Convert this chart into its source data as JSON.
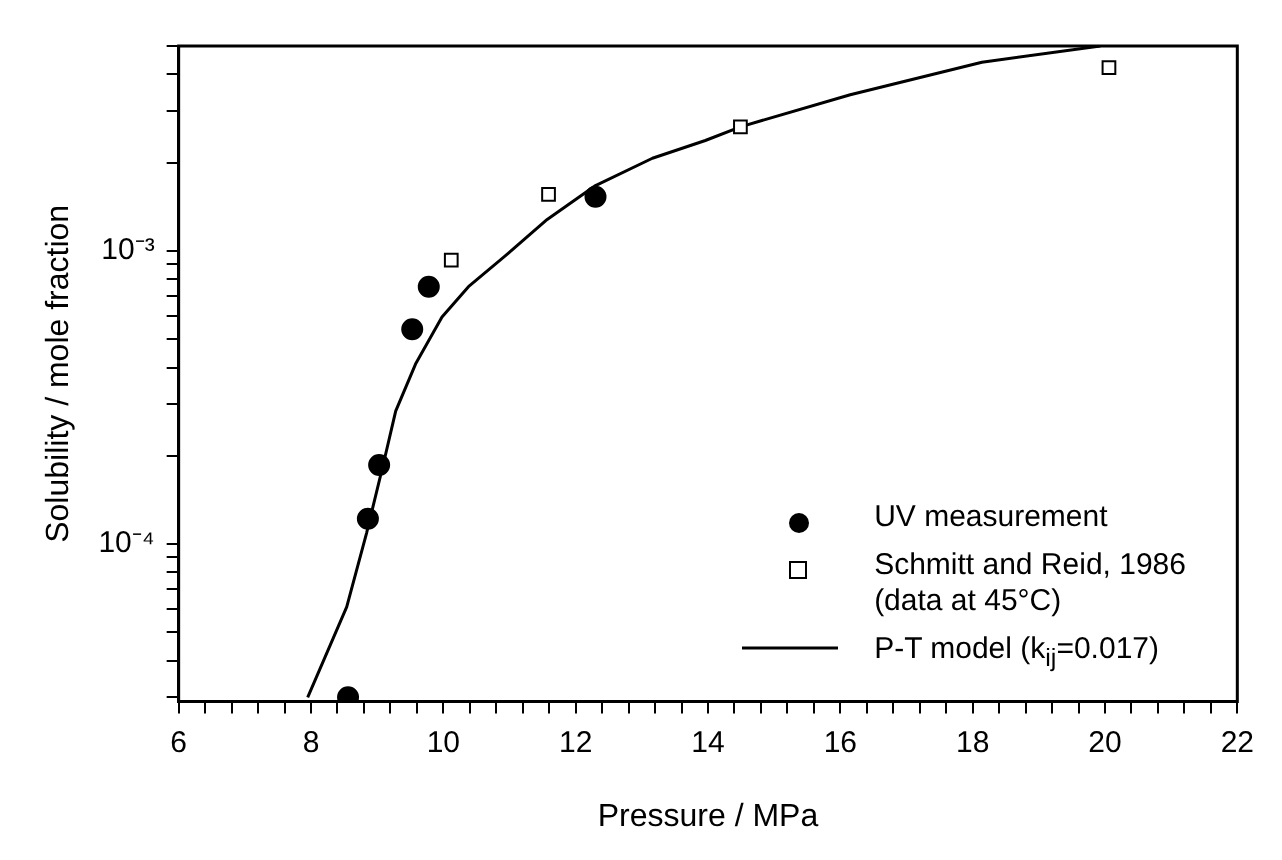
{
  "chart_data": {
    "type": "scatter",
    "xlabel": "Pressure / MPa",
    "ylabel": "Solubility / mole fraction",
    "log": "y",
    "grid": false,
    "legend": "bottom right",
    "xlim": [
      6,
      22
    ],
    "ylim": [
      2.9e-05,
      0.005
    ],
    "xticks": [
      6,
      {
        "value": 6.4,
        "label": null
      },
      {
        "value": 6.8,
        "label": null
      },
      {
        "value": 7.2,
        "label": null
      },
      {
        "value": 7.6,
        "label": null
      },
      8,
      {
        "value": 8.4,
        "label": null
      },
      {
        "value": 8.8,
        "label": null
      },
      {
        "value": 9.2,
        "label": null
      },
      {
        "value": 9.6,
        "label": null
      },
      10,
      {
        "value": 10.4,
        "label": null
      },
      {
        "value": 10.8,
        "label": null
      },
      {
        "value": 11.2,
        "label": null
      },
      {
        "value": 11.6,
        "label": null
      },
      12,
      {
        "value": 12.4,
        "label": null
      },
      {
        "value": 12.8,
        "label": null
      },
      {
        "value": 13.2,
        "label": null
      },
      {
        "value": 13.6,
        "label": null
      },
      14,
      {
        "value": 14.4,
        "label": null
      },
      {
        "value": 14.8,
        "label": null
      },
      {
        "value": 15.2,
        "label": null
      },
      {
        "value": 15.6,
        "label": null
      },
      16,
      {
        "value": 16.4,
        "label": null
      },
      {
        "value": 16.8,
        "label": null
      },
      {
        "value": 17.2,
        "label": null
      },
      {
        "value": 17.6,
        "label": null
      },
      18,
      {
        "value": 18.4,
        "label": null
      },
      {
        "value": 18.8,
        "label": null
      },
      {
        "value": 19.2,
        "label": null
      },
      {
        "value": 19.6,
        "label": null
      },
      20,
      {
        "value": 20.4,
        "label": null
      },
      {
        "value": 20.8,
        "label": null
      },
      {
        "value": 21.2,
        "label": null
      },
      {
        "value": 21.6,
        "label": null
      },
      22
    ],
    "yticks": [
      {
        "value": 3e-05,
        "label": null
      },
      {
        "value": 4e-05,
        "label": null
      },
      {
        "value": 5e-05,
        "label": null
      },
      {
        "value": 6e-05,
        "label": null
      },
      {
        "value": 7e-05,
        "label": null
      },
      {
        "value": 8e-05,
        "label": null
      },
      {
        "value": 9e-05,
        "label": null
      },
      {
        "value": 0.0001,
        "label": "10⁻⁴"
      },
      {
        "value": 0.0002,
        "label": null
      },
      {
        "value": 0.0003,
        "label": null
      },
      {
        "value": 0.0004,
        "label": null
      },
      {
        "value": 0.0005,
        "label": null
      },
      {
        "value": 0.0006,
        "label": null
      },
      {
        "value": 0.0007,
        "label": null
      },
      {
        "value": 0.0008,
        "label": null
      },
      {
        "value": 0.0009,
        "label": null
      },
      {
        "value": 0.001,
        "label": "10⁻³"
      },
      {
        "value": 0.002,
        "label": null
      },
      {
        "value": 0.003,
        "label": null
      },
      {
        "value": 0.004,
        "label": null
      },
      {
        "value": 0.005,
        "label": null
      }
    ],
    "series": [
      {
        "name": "UV measurement",
        "type": "scatter",
        "marker": "circle",
        "color": "#000000",
        "x": [
          8.56,
          8.86,
          9.03,
          9.53,
          9.78,
          12.3
        ],
        "values": [
          3e-05,
          0.000122,
          0.000186,
          0.00054,
          0.000755,
          0.00153
        ]
      },
      {
        "name": "Schmitt and Reid, 1986\n(data at 45°C)",
        "type": "scatter",
        "marker": "square",
        "color": "#000000",
        "x": [
          10.12,
          11.59,
          14.49,
          20.06
        ],
        "values": [
          0.00093,
          0.00156,
          0.00265,
          0.00422
        ]
      },
      {
        "name": "P-T model (k$_{ij}$=0.017)",
        "type": "line",
        "marker": "none",
        "line_style": "solid",
        "color": "#000000",
        "x": [
          7.95,
          8.54,
          8.84,
          9.09,
          9.28,
          9.58,
          9.98,
          10.38,
          10.98,
          11.57,
          12.3,
          13.16,
          13.96,
          14.49,
          16.15,
          18.14,
          19.93
        ],
        "values": [
          3e-05,
          6.1e-05,
          0.000109,
          0.000186,
          0.000284,
          0.000411,
          0.000595,
          0.000755,
          0.00098,
          0.00128,
          0.00167,
          0.00207,
          0.00238,
          0.00265,
          0.00341,
          0.0044,
          0.005
        ]
      }
    ]
  }
}
